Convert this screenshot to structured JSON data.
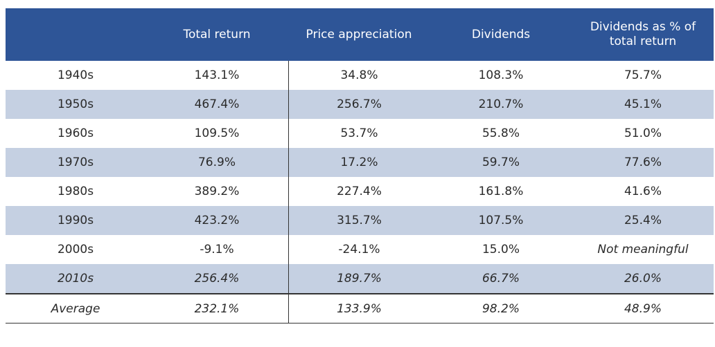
{
  "header": [
    "",
    "Total return",
    "Price appreciation",
    "Dividends",
    "Dividends as % of total return"
  ],
  "rows": [
    {
      "label": "1940s",
      "total": "143.1%",
      "price": "34.8%",
      "dividends": "108.3%",
      "pct": "75.7%"
    },
    {
      "label": "1950s",
      "total": "467.4%",
      "price": "256.7%",
      "dividends": "210.7%",
      "pct": "45.1%"
    },
    {
      "label": "1960s",
      "total": "109.5%",
      "price": "53.7%",
      "dividends": "55.8%",
      "pct": "51.0%"
    },
    {
      "label": "1970s",
      "total": "76.9%",
      "price": "17.2%",
      "dividends": "59.7%",
      "pct": "77.6%"
    },
    {
      "label": "1980s",
      "total": "389.2%",
      "price": "227.4%",
      "dividends": "161.8%",
      "pct": "41.6%"
    },
    {
      "label": "1990s",
      "total": "423.2%",
      "price": "315.7%",
      "dividends": "107.5%",
      "pct": "25.4%"
    },
    {
      "label": "2000s",
      "total": "-9.1%",
      "price": "-24.1%",
      "dividends": "15.0%",
      "pct": "Not meaningful"
    },
    {
      "label": "2010s",
      "total": "256.4%",
      "price": "189.7%",
      "dividends": "66.7%",
      "pct": "26.0%"
    }
  ],
  "average": {
    "label": "Average",
    "total": "232.1%",
    "price": "133.9%",
    "dividends": "98.2%",
    "pct": "48.9%"
  }
}
